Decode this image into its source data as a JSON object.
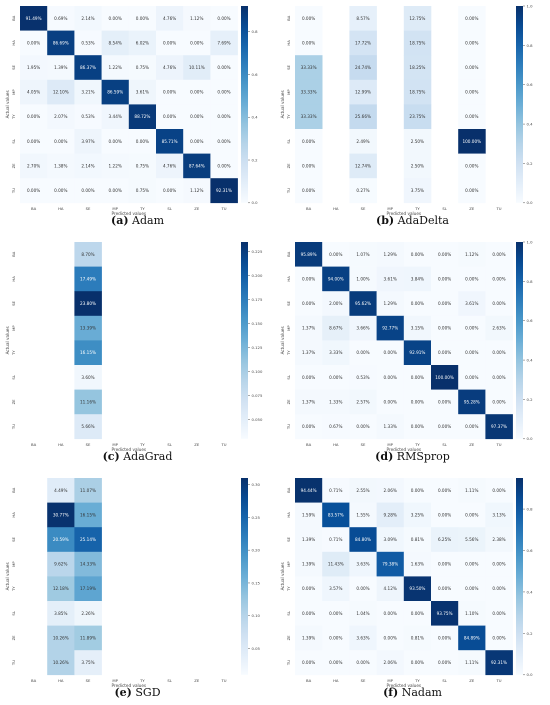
{
  "categories": [
    "BA",
    "HA",
    "SE",
    "MP",
    "TY",
    "SL",
    "ZE",
    "TU"
  ],
  "xlabel": "Predicted values",
  "ylabel": "Actual values",
  "chart_data": [
    {
      "type": "heatmap",
      "label": "a",
      "caption": "Adam",
      "categories": [
        "BA",
        "HA",
        "SE",
        "MP",
        "TY",
        "SL",
        "ZE",
        "TU"
      ],
      "xlabel": "Predicted values",
      "ylabel": "Actual values",
      "colorbar_ticks": [
        "0.0",
        "0.2",
        "0.4",
        "0.6",
        "0.8"
      ],
      "vmax": 0.92,
      "values": [
        [
          91.49,
          0.69,
          2.14,
          0.0,
          0.0,
          4.76,
          1.12,
          0.0
        ],
        [
          0.0,
          86.69,
          0.53,
          8.54,
          6.02,
          0.0,
          0.0,
          7.69
        ],
        [
          1.95,
          1.39,
          86.37,
          1.22,
          0.75,
          4.76,
          10.11,
          0.0
        ],
        [
          4.05,
          12.1,
          3.21,
          86.59,
          3.61,
          0.0,
          0.0,
          0.0
        ],
        [
          0.0,
          2.07,
          0.53,
          3.44,
          88.72,
          0.0,
          0.0,
          0.0
        ],
        [
          0.0,
          0.0,
          3.97,
          0.0,
          0.0,
          85.71,
          0.0,
          0.0
        ],
        [
          2.7,
          1.38,
          2.14,
          1.22,
          0.75,
          4.76,
          87.64,
          0.0
        ],
        [
          0.0,
          0.0,
          0.0,
          0.0,
          0.75,
          0.0,
          1.12,
          92.31
        ]
      ]
    },
    {
      "type": "heatmap",
      "label": "b",
      "caption": "AdaDelta",
      "categories": [
        "BA",
        "HA",
        "SE",
        "MP",
        "TY",
        "SL",
        "ZE",
        "TU"
      ],
      "xlabel": "Predicted values",
      "ylabel": "Actual values",
      "colorbar_ticks": [
        "0.0",
        "0.2",
        "0.4",
        "0.6",
        "0.8",
        "1.0"
      ],
      "vmax": 1.0,
      "values": [
        [
          0.0,
          null,
          8.57,
          null,
          12.75,
          null,
          0.0,
          null
        ],
        [
          0.0,
          null,
          17.72,
          null,
          18.75,
          null,
          0.0,
          null
        ],
        [
          33.33,
          null,
          24.74,
          null,
          18.25,
          null,
          0.0,
          null
        ],
        [
          33.33,
          null,
          12.99,
          null,
          18.75,
          null,
          0.0,
          null
        ],
        [
          33.33,
          null,
          25.66,
          null,
          23.75,
          null,
          0.0,
          null
        ],
        [
          0.0,
          null,
          2.49,
          null,
          2.5,
          null,
          100.0,
          null
        ],
        [
          0.0,
          null,
          12.74,
          null,
          2.5,
          null,
          0.0,
          null
        ],
        [
          0.0,
          null,
          0.27,
          null,
          3.75,
          null,
          0.0,
          null
        ]
      ]
    },
    {
      "type": "heatmap",
      "label": "c",
      "caption": "AdaGrad",
      "categories": [
        "BA",
        "HA",
        "SE",
        "MP",
        "TY",
        "SL",
        "ZE",
        "TU"
      ],
      "xlabel": "Predicted values",
      "ylabel": "Actual values",
      "colorbar_ticks": [
        "0.050",
        "0.075",
        "0.100",
        "0.125",
        "0.150",
        "0.175",
        "0.200",
        "0.225"
      ],
      "vmin": 0.03,
      "vmax": 0.235,
      "values": [
        [
          null,
          null,
          8.7,
          null,
          null,
          null,
          null,
          null
        ],
        [
          null,
          null,
          17.49,
          null,
          null,
          null,
          null,
          null
        ],
        [
          null,
          null,
          23.8,
          null,
          null,
          null,
          null,
          null
        ],
        [
          null,
          null,
          13.39,
          null,
          null,
          null,
          null,
          null
        ],
        [
          null,
          null,
          16.15,
          null,
          null,
          null,
          null,
          null
        ],
        [
          null,
          null,
          3.6,
          null,
          null,
          null,
          null,
          null
        ],
        [
          null,
          null,
          11.16,
          null,
          null,
          null,
          null,
          null
        ],
        [
          null,
          null,
          5.66,
          null,
          null,
          null,
          null,
          null
        ]
      ]
    },
    {
      "type": "heatmap",
      "label": "d",
      "caption": "RMSprop",
      "categories": [
        "BA",
        "HA",
        "SE",
        "MP",
        "TY",
        "SL",
        "ZE",
        "TU"
      ],
      "xlabel": "Predicted values",
      "ylabel": "Actual values",
      "colorbar_ticks": [
        "0.0",
        "0.2",
        "0.4",
        "0.6",
        "0.8",
        "1.0"
      ],
      "vmax": 1.0,
      "values": [
        [
          95.89,
          0.0,
          1.07,
          1.29,
          0.0,
          0.0,
          1.12,
          0.0
        ],
        [
          0.0,
          94.0,
          1.0,
          3.61,
          3.84,
          0.0,
          0.0,
          0.0
        ],
        [
          0.0,
          2.0,
          95.62,
          1.29,
          0.0,
          0.0,
          3.61,
          0.0
        ],
        [
          1.37,
          8.67,
          3.66,
          92.77,
          3.15,
          0.0,
          0.0,
          2.63
        ],
        [
          1.37,
          3.33,
          0.0,
          0.0,
          92.91,
          0.0,
          0.0,
          0.0
        ],
        [
          0.0,
          0.0,
          0.53,
          0.0,
          0.0,
          100.0,
          0.0,
          0.0
        ],
        [
          1.37,
          1.33,
          2.57,
          0.0,
          0.0,
          0.0,
          95.28,
          0.0
        ],
        [
          0.0,
          0.67,
          0.0,
          1.33,
          0.0,
          0.0,
          0.0,
          97.37
        ]
      ]
    },
    {
      "type": "heatmap",
      "label": "e",
      "caption": "SGD",
      "categories": [
        "BA",
        "HA",
        "SE",
        "MP",
        "TY",
        "SL",
        "ZE",
        "TU"
      ],
      "xlabel": "Predicted values",
      "ylabel": "Actual values",
      "colorbar_ticks": [
        "0.05",
        "0.10",
        "0.15",
        "0.20",
        "0.25",
        "0.30"
      ],
      "vmin": 0.01,
      "vmax": 0.31,
      "values": [
        [
          null,
          4.49,
          11.07,
          null,
          null,
          null,
          null,
          null
        ],
        [
          null,
          30.77,
          16.15,
          null,
          null,
          null,
          null,
          null
        ],
        [
          null,
          20.59,
          25.14,
          null,
          null,
          null,
          null,
          null
        ],
        [
          null,
          9.62,
          14.33,
          null,
          null,
          null,
          null,
          null
        ],
        [
          null,
          12.18,
          17.19,
          null,
          null,
          null,
          null,
          null
        ],
        [
          null,
          3.85,
          2.26,
          null,
          null,
          null,
          null,
          null
        ],
        [
          null,
          10.26,
          11.89,
          null,
          null,
          null,
          null,
          null
        ],
        [
          null,
          10.26,
          3.75,
          null,
          null,
          null,
          null,
          null
        ]
      ]
    },
    {
      "type": "heatmap",
      "label": "f",
      "caption": "Nadam",
      "categories": [
        "BA",
        "HA",
        "SE",
        "MP",
        "TY",
        "SL",
        "ZE",
        "TU"
      ],
      "xlabel": "Predicted values",
      "ylabel": "Actual values",
      "colorbar_ticks": [
        "0.0",
        "0.2",
        "0.4",
        "0.6",
        "0.8"
      ],
      "vmax": 0.95,
      "values": [
        [
          94.44,
          0.71,
          2.55,
          2.06,
          0.0,
          0.0,
          1.11,
          0.0
        ],
        [
          1.59,
          83.57,
          1.55,
          9.28,
          3.25,
          0.0,
          0.0,
          3.13
        ],
        [
          1.39,
          0.71,
          84.8,
          3.09,
          0.81,
          6.25,
          5.56,
          2.38
        ],
        [
          1.39,
          11.43,
          3.63,
          79.38,
          1.63,
          0.0,
          0.0,
          0.0
        ],
        [
          0.0,
          3.57,
          0.0,
          4.12,
          93.5,
          0.0,
          0.0,
          0.0
        ],
        [
          0.0,
          0.0,
          1.04,
          0.0,
          0.0,
          93.75,
          1.1,
          0.0
        ],
        [
          1.39,
          0.0,
          3.63,
          0.0,
          0.81,
          0.0,
          84.89,
          0.0
        ],
        [
          0.0,
          0.0,
          0.0,
          2.06,
          0.0,
          0.0,
          1.11,
          92.31
        ]
      ]
    }
  ]
}
